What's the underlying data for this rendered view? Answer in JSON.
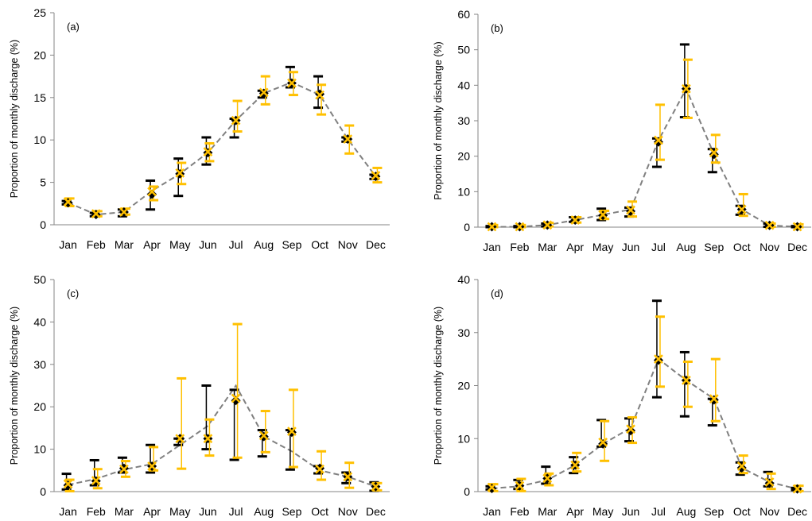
{
  "chart_data": [
    {
      "type": "line",
      "panel_label": "(a)",
      "ylabel": "Proportion of monthly discharge  (%)",
      "ylim": [
        0,
        25
      ],
      "yticks": [
        "0",
        "5",
        "10",
        "15",
        "20",
        "25"
      ],
      "categories": [
        "Jan",
        "Feb",
        "Mar",
        "Apr",
        "May",
        "Jun",
        "Jul",
        "Aug",
        "Sep",
        "Oct",
        "Nov",
        "Dec"
      ],
      "series": [
        {
          "values": [
            2.6,
            1.2,
            1.5,
            4.0,
            6.0,
            8.5,
            12.3,
            15.5,
            16.8,
            15.3,
            10.1,
            5.7
          ],
          "color": "#808080",
          "style": "dashed"
        },
        {
          "values": [
            2.6,
            1.2,
            1.5,
            3.6,
            6.0,
            8.5,
            12.3,
            15.5,
            16.7,
            15.4,
            10.1,
            5.7
          ],
          "color": "#000000",
          "marker": "diamond",
          "error_low": [
            2.4,
            1.0,
            1.0,
            1.8,
            3.4,
            7.1,
            10.3,
            15.0,
            16.2,
            13.8,
            9.8,
            5.4
          ],
          "error_high": [
            2.8,
            1.4,
            1.8,
            5.2,
            7.8,
            10.3,
            12.5,
            15.8,
            18.6,
            17.5,
            10.3,
            5.9
          ]
        },
        {
          "values": [
            2.7,
            1.3,
            1.5,
            3.9,
            6.1,
            8.6,
            12.3,
            15.6,
            16.7,
            15.3,
            10.1,
            5.8
          ],
          "color": "#FFC000",
          "marker": "x",
          "error_low": [
            2.2,
            1.0,
            1.2,
            2.9,
            4.8,
            7.5,
            11.0,
            14.2,
            15.3,
            13.0,
            8.4,
            5.0
          ],
          "error_high": [
            3.1,
            1.6,
            1.9,
            4.5,
            7.3,
            9.6,
            14.6,
            17.5,
            18.0,
            16.5,
            11.7,
            6.7
          ]
        }
      ]
    },
    {
      "type": "line",
      "panel_label": "(b)",
      "ylabel": "Proportion of monthly discharge  (%)",
      "ylim": [
        0,
        60
      ],
      "yticks": [
        "0",
        "10",
        "20",
        "30",
        "40",
        "50",
        "60"
      ],
      "categories": [
        "Jan",
        "Feb",
        "Mar",
        "Apr",
        "May",
        "Jun",
        "Jul",
        "Aug",
        "Sep",
        "Oct",
        "Nov",
        "Dec"
      ],
      "series": [
        {
          "values": [
            0.1,
            0.1,
            0.6,
            2.0,
            3.5,
            5.0,
            24.5,
            39.0,
            20.5,
            5.0,
            0.5,
            0.1
          ],
          "color": "#808080",
          "style": "dashed"
        },
        {
          "values": [
            0.1,
            0.1,
            0.6,
            2.0,
            3.3,
            4.5,
            24.0,
            39.0,
            20.5,
            5.0,
            0.5,
            0.1
          ],
          "color": "#000000",
          "marker": "diamond",
          "error_low": [
            0.0,
            0.0,
            0.2,
            1.5,
            2.0,
            3.0,
            17.0,
            31.0,
            15.5,
            3.5,
            0.1,
            0.0
          ],
          "error_high": [
            0.3,
            0.3,
            1.0,
            2.8,
            5.2,
            5.5,
            25.0,
            51.5,
            22.0,
            6.0,
            1.0,
            0.3
          ]
        },
        {
          "values": [
            0.1,
            0.1,
            0.6,
            2.0,
            3.5,
            4.8,
            24.5,
            39.0,
            21.0,
            5.0,
            0.5,
            0.1
          ],
          "color": "#FFC000",
          "marker": "x",
          "error_low": [
            0.0,
            0.0,
            0.2,
            1.3,
            2.3,
            3.0,
            19.0,
            30.8,
            18.2,
            3.2,
            0.1,
            0.0
          ],
          "error_high": [
            0.6,
            0.6,
            1.2,
            2.8,
            4.6,
            7.2,
            34.5,
            47.2,
            26.0,
            9.3,
            1.0,
            0.8
          ]
        }
      ]
    },
    {
      "type": "line",
      "panel_label": "(c)",
      "ylabel": "Proportion of monthly discharge  (%)",
      "ylim": [
        0,
        50
      ],
      "yticks": [
        "0",
        "10",
        "20",
        "30",
        "40",
        "50"
      ],
      "categories": [
        "Jan",
        "Feb",
        "Mar",
        "Apr",
        "May",
        "Jun",
        "Jul",
        "Aug",
        "Sep",
        "Oct",
        "Nov",
        "Dec"
      ],
      "series": [
        {
          "values": [
            1.6,
            3.0,
            5.2,
            6.5,
            11.0,
            15.5,
            25.0,
            13.0,
            9.5,
            5.0,
            3.5,
            1.2
          ],
          "color": "#808080",
          "style": "dashed"
        },
        {
          "values": [
            1.5,
            2.5,
            5.5,
            6.0,
            12.5,
            12.5,
            21.5,
            13.0,
            14.0,
            5.5,
            3.5,
            1.2
          ],
          "color": "#000000",
          "marker": "diamond",
          "error_low": [
            0.5,
            1.5,
            4.5,
            4.5,
            11.0,
            10.0,
            7.5,
            8.3,
            5.2,
            4.3,
            2.0,
            0.2
          ],
          "error_high": [
            4.2,
            7.4,
            8.0,
            11.0,
            12.5,
            25.0,
            24.0,
            14.5,
            14.5,
            6.0,
            4.5,
            2.2
          ]
        },
        {
          "values": [
            1.8,
            2.6,
            5.3,
            6.0,
            12.5,
            12.5,
            22.0,
            13.2,
            14.2,
            5.3,
            3.5,
            1.2
          ],
          "color": "#FFC000",
          "marker": "x",
          "error_low": [
            0.1,
            0.8,
            3.5,
            5.0,
            5.4,
            8.5,
            8.0,
            9.3,
            5.8,
            2.8,
            0.9,
            0.3
          ],
          "error_high": [
            2.8,
            5.3,
            7.2,
            10.5,
            26.7,
            17.0,
            39.5,
            19.0,
            24.0,
            9.5,
            6.8,
            2.0
          ]
        }
      ]
    },
    {
      "type": "line",
      "panel_label": "(d)",
      "ylabel": "Proportion of monthly discharge  (%)",
      "ylim": [
        0,
        40
      ],
      "yticks": [
        "0",
        "10",
        "20",
        "30",
        "40"
      ],
      "categories": [
        "Jan",
        "Feb",
        "Mar",
        "Apr",
        "May",
        "Jun",
        "Jul",
        "Aug",
        "Sep",
        "Oct",
        "Nov",
        "Dec"
      ],
      "series": [
        {
          "values": [
            0.6,
            1.0,
            2.2,
            5.0,
            9.0,
            12.0,
            25.0,
            21.0,
            17.5,
            4.5,
            1.8,
            0.5
          ],
          "color": "#808080",
          "style": "dashed"
        },
        {
          "values": [
            0.6,
            1.1,
            2.5,
            5.0,
            9.0,
            11.5,
            24.8,
            21.0,
            17.3,
            4.5,
            1.6,
            0.5
          ],
          "color": "#000000",
          "marker": "diamond",
          "error_low": [
            0.4,
            0.5,
            1.5,
            3.5,
            8.5,
            9.5,
            17.8,
            14.2,
            12.5,
            3.2,
            1.0,
            0.3
          ],
          "error_high": [
            1.0,
            2.2,
            4.7,
            6.5,
            13.5,
            13.8,
            36.0,
            26.3,
            17.5,
            5.5,
            3.7,
            0.7
          ]
        },
        {
          "values": [
            0.8,
            1.1,
            2.5,
            5.0,
            9.3,
            11.8,
            25.0,
            21.0,
            17.5,
            4.8,
            1.8,
            0.5
          ],
          "color": "#FFC000",
          "marker": "x",
          "error_low": [
            0.1,
            0.1,
            1.2,
            3.8,
            5.8,
            9.2,
            19.8,
            16.0,
            13.3,
            3.5,
            0.5,
            0.1
          ],
          "error_high": [
            1.4,
            2.4,
            3.4,
            7.3,
            13.3,
            14.0,
            33.0,
            24.5,
            25.0,
            6.8,
            3.4,
            1.1
          ]
        }
      ]
    }
  ]
}
